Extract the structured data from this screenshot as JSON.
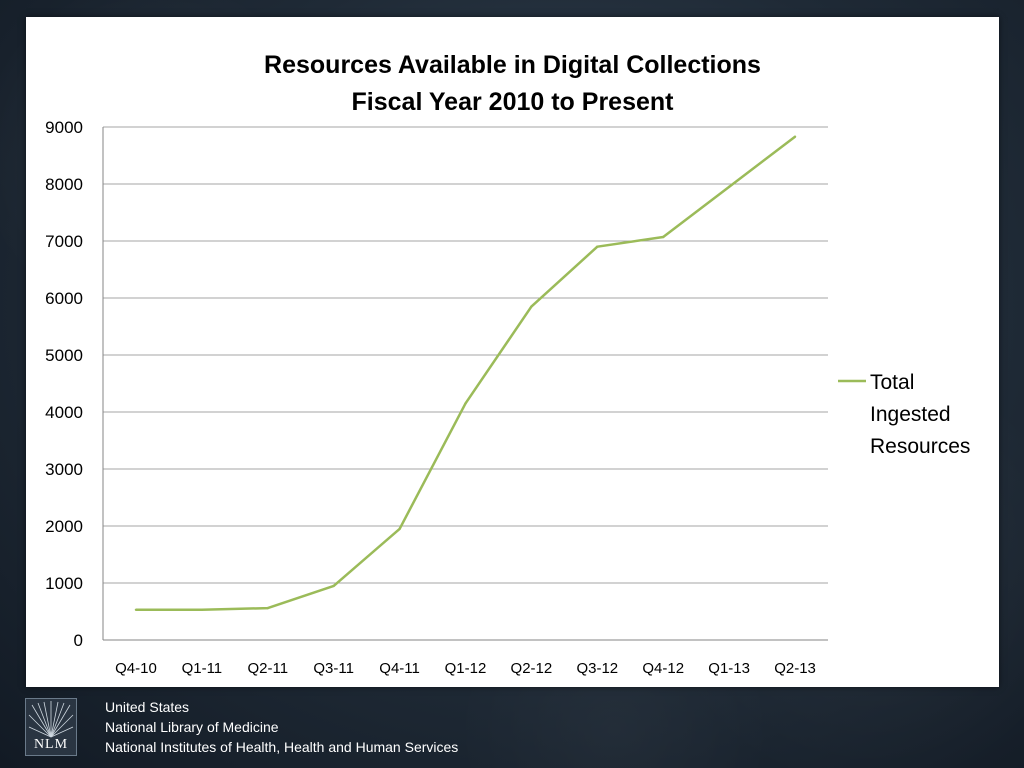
{
  "chart_data": {
    "type": "line",
    "title": "Resources Available in Digital Collections Fiscal Year 2010 to Present",
    "title_lines": [
      "Resources Available in Digital Collections",
      "Fiscal Year 2010 to Present"
    ],
    "xlabel": "",
    "ylabel": "",
    "categories": [
      "Q4-10",
      "Q1-11",
      "Q2-11",
      "Q3-11",
      "Q4-11",
      "Q1-12",
      "Q2-12",
      "Q3-12",
      "Q4-12",
      "Q1-13",
      "Q2-13"
    ],
    "series": [
      {
        "name": "Total Ingested Resources",
        "legend_lines": [
          "Total",
          "Ingested",
          "Resources"
        ],
        "color": "#9bbb59",
        "values": [
          530,
          530,
          560,
          950,
          1950,
          4150,
          5850,
          6900,
          7070,
          7950,
          8830
        ]
      }
    ],
    "ylim": [
      0,
      9000
    ],
    "yticks": [
      0,
      1000,
      2000,
      3000,
      4000,
      5000,
      6000,
      7000,
      8000,
      9000
    ],
    "grid": true,
    "legend_position": "right"
  },
  "footer": {
    "logo_text": "NLM",
    "lines": [
      "United States",
      "National Library of Medicine",
      "National Institutes of Health, Health and Human Services"
    ]
  }
}
